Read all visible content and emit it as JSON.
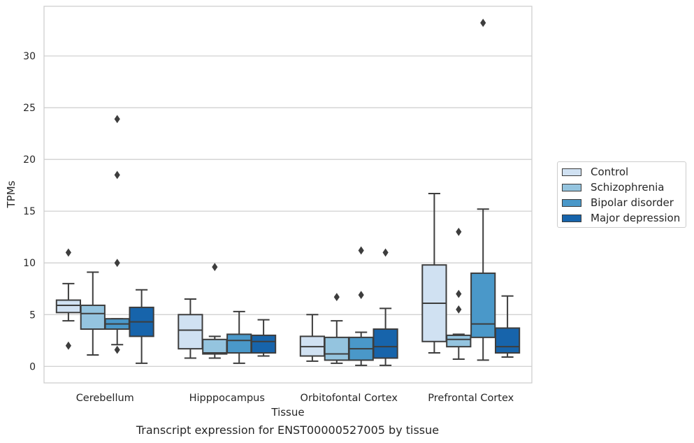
{
  "chart_data": {
    "type": "boxplot",
    "title": "",
    "caption": "Transcript expression for ENST00000527005 by tissue",
    "xlabel": "Tissue",
    "ylabel": "TPMs",
    "ylim": [
      -1.6,
      34.8
    ],
    "yticks": [
      0,
      5,
      10,
      15,
      20,
      25,
      30
    ],
    "grid": "horizontal",
    "legend_position": "right",
    "categories": [
      "Cerebellum",
      "Hipppocampus",
      "Orbitofontal Cortex",
      "Prefrontal Cortex"
    ],
    "series": [
      {
        "name": "Control",
        "color": "#d0e1f2",
        "boxes": [
          {
            "whisker_low": 4.4,
            "q1": 5.2,
            "median": 5.9,
            "q3": 6.4,
            "whisker_high": 8.0,
            "outliers": [
              2.0,
              11.0
            ]
          },
          {
            "whisker_low": 0.8,
            "q1": 1.7,
            "median": 3.5,
            "q3": 5.0,
            "whisker_high": 6.5,
            "outliers": []
          },
          {
            "whisker_low": 0.5,
            "q1": 1.0,
            "median": 1.9,
            "q3": 2.9,
            "whisker_high": 5.0,
            "outliers": []
          },
          {
            "whisker_low": 1.3,
            "q1": 2.4,
            "median": 6.1,
            "q3": 9.8,
            "whisker_high": 16.7,
            "outliers": []
          }
        ]
      },
      {
        "name": "Schizophrenia",
        "color": "#94c4df",
        "boxes": [
          {
            "whisker_low": 1.1,
            "q1": 3.6,
            "median": 5.1,
            "q3": 5.9,
            "whisker_high": 9.1,
            "outliers": []
          },
          {
            "whisker_low": 0.8,
            "q1": 1.2,
            "median": 1.3,
            "q3": 2.6,
            "whisker_high": 2.9,
            "outliers": [
              9.6
            ]
          },
          {
            "whisker_low": 0.3,
            "q1": 0.6,
            "median": 1.2,
            "q3": 2.8,
            "whisker_high": 4.4,
            "outliers": [
              6.7
            ]
          },
          {
            "whisker_low": 0.7,
            "q1": 1.9,
            "median": 2.6,
            "q3": 3.0,
            "whisker_high": 3.1,
            "outliers": [
              5.5,
              7.0,
              13.0
            ]
          }
        ]
      },
      {
        "name": "Bipolar disorder",
        "color": "#4a98c9",
        "boxes": [
          {
            "whisker_low": 2.1,
            "q1": 3.6,
            "median": 4.1,
            "q3": 4.6,
            "whisker_high": 4.6,
            "outliers": [
              1.6,
              10.0,
              18.5,
              23.9
            ]
          },
          {
            "whisker_low": 0.3,
            "q1": 1.3,
            "median": 2.5,
            "q3": 3.1,
            "whisker_high": 5.3,
            "outliers": []
          },
          {
            "whisker_low": 0.1,
            "q1": 0.6,
            "median": 1.7,
            "q3": 2.8,
            "whisker_high": 3.3,
            "outliers": [
              6.9,
              11.2
            ]
          },
          {
            "whisker_low": 0.6,
            "q1": 2.8,
            "median": 4.1,
            "q3": 9.0,
            "whisker_high": 15.2,
            "outliers": [
              33.2
            ]
          }
        ]
      },
      {
        "name": "Major depression",
        "color": "#1764ab",
        "boxes": [
          {
            "whisker_low": 0.3,
            "q1": 2.9,
            "median": 4.3,
            "q3": 5.7,
            "whisker_high": 7.4,
            "outliers": []
          },
          {
            "whisker_low": 1.0,
            "q1": 1.3,
            "median": 2.4,
            "q3": 3.0,
            "whisker_high": 4.5,
            "outliers": []
          },
          {
            "whisker_low": 0.1,
            "q1": 0.8,
            "median": 1.9,
            "q3": 3.6,
            "whisker_high": 5.6,
            "outliers": [
              11.0
            ]
          },
          {
            "whisker_low": 0.9,
            "q1": 1.3,
            "median": 1.9,
            "q3": 3.7,
            "whisker_high": 6.8,
            "outliers": []
          }
        ]
      }
    ]
  }
}
